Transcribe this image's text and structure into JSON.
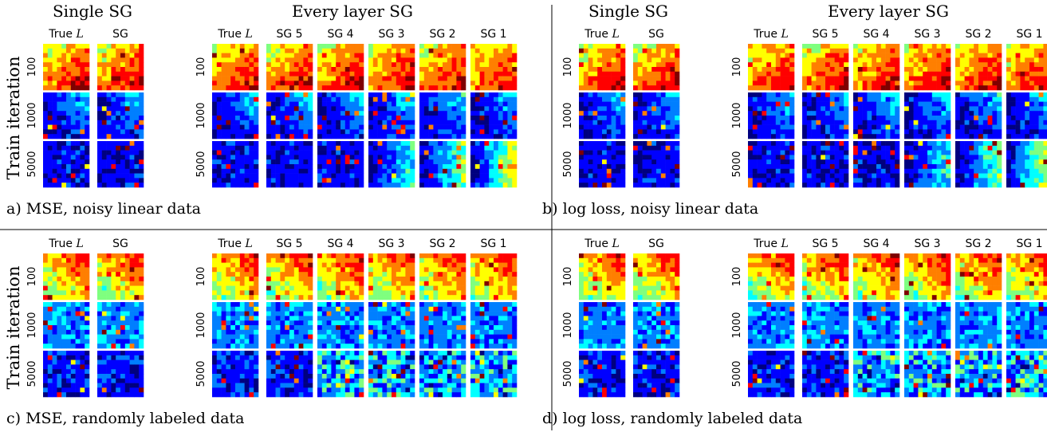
{
  "panels": [
    {
      "caption": "a) MSE, noisy linear data",
      "seed": 11,
      "kind": "linear",
      "single_title": "Single SG",
      "every_title": "Every layer SG",
      "single_cols": [
        {
          "label": "True ",
          "italic": "L"
        },
        {
          "label": "SG",
          "italic": ""
        }
      ],
      "every_cols": [
        {
          "label": "True ",
          "italic": "L"
        },
        {
          "label": "SG 5",
          "italic": ""
        },
        {
          "label": "SG 4",
          "italic": ""
        },
        {
          "label": "SG 3",
          "italic": ""
        },
        {
          "label": "SG 2",
          "italic": ""
        },
        {
          "label": "SG 1",
          "italic": ""
        }
      ],
      "ylabel": "Train iteration",
      "rows": [
        "100",
        "1000",
        "5000"
      ]
    },
    {
      "caption": "b) log loss, noisy linear data",
      "seed": 23,
      "kind": "linear",
      "single_title": "Single SG",
      "every_title": "Every layer SG",
      "single_cols": [
        {
          "label": "True ",
          "italic": "L"
        },
        {
          "label": "SG",
          "italic": ""
        }
      ],
      "every_cols": [
        {
          "label": "True ",
          "italic": "L"
        },
        {
          "label": "SG 5",
          "italic": ""
        },
        {
          "label": "SG 4",
          "italic": ""
        },
        {
          "label": "SG 3",
          "italic": ""
        },
        {
          "label": "SG 2",
          "italic": ""
        },
        {
          "label": "SG 1",
          "italic": ""
        }
      ],
      "ylabel": "",
      "rows": [
        "100",
        "1000",
        "5000"
      ]
    },
    {
      "caption": "c) MSE, randomly labeled data",
      "seed": 37,
      "kind": "random",
      "single_title": "",
      "every_title": "",
      "single_cols": [
        {
          "label": "True ",
          "italic": "L"
        },
        {
          "label": "SG",
          "italic": ""
        }
      ],
      "every_cols": [
        {
          "label": "True ",
          "italic": "L"
        },
        {
          "label": "SG 5",
          "italic": ""
        },
        {
          "label": "SG 4",
          "italic": ""
        },
        {
          "label": "SG 3",
          "italic": ""
        },
        {
          "label": "SG 2",
          "italic": ""
        },
        {
          "label": "SG 1",
          "italic": ""
        }
      ],
      "ylabel": "Train iteration",
      "rows": [
        "100",
        "1000",
        "5000"
      ]
    },
    {
      "caption": "d) log loss, randomly labeled data",
      "seed": 53,
      "kind": "random",
      "single_title": "",
      "every_title": "",
      "single_cols": [
        {
          "label": "True ",
          "italic": "L"
        },
        {
          "label": "SG",
          "italic": ""
        }
      ],
      "every_cols": [
        {
          "label": "True ",
          "italic": "L"
        },
        {
          "label": "SG 5",
          "italic": ""
        },
        {
          "label": "SG 4",
          "italic": ""
        },
        {
          "label": "SG 3",
          "italic": ""
        },
        {
          "label": "SG 2",
          "italic": ""
        },
        {
          "label": "SG 1",
          "italic": ""
        }
      ],
      "ylabel": "",
      "rows": [
        "100",
        "1000",
        "5000"
      ]
    }
  ],
  "colors": {
    "jet": [
      "#00007f",
      "#0000ff",
      "#007fff",
      "#00ffff",
      "#7fff7f",
      "#ffff00",
      "#ff7f00",
      "#ff0000",
      "#7f0000"
    ],
    "divider": "#000000"
  }
}
